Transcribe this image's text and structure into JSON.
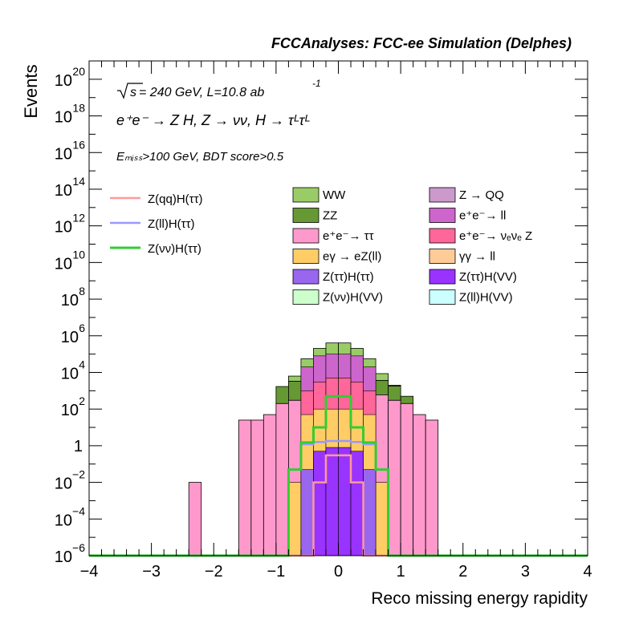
{
  "chart_data": {
    "type": "bar",
    "title": "FCCAnalyses: FCC-ee Simulation (Delphes)",
    "xlabel": "Reco missing energy rapidity",
    "ylabel": "Events",
    "y_log": true,
    "xlim": [
      -4,
      4
    ],
    "ylim": [
      1e-06,
      1e+21
    ],
    "x_ticks": [
      "−4",
      "−3",
      "−2",
      "−1",
      "0",
      "1",
      "2",
      "3",
      "4"
    ],
    "y_ticks": [
      {
        "base": "10",
        "exp": "−6",
        "e": -6
      },
      {
        "base": "10",
        "exp": "−4",
        "e": -4
      },
      {
        "base": "10",
        "exp": "−2",
        "e": -2
      },
      {
        "base": "1",
        "exp": "",
        "e": 0
      },
      {
        "base": "10",
        "exp": "2",
        "e": 2
      },
      {
        "base": "10",
        "exp": "4",
        "e": 4
      },
      {
        "base": "10",
        "exp": "6",
        "e": 6
      },
      {
        "base": "10",
        "exp": "8",
        "e": 8
      },
      {
        "base": "10",
        "exp": "10",
        "e": 10
      },
      {
        "base": "10",
        "exp": "12",
        "e": 12
      },
      {
        "base": "10",
        "exp": "14",
        "e": 14
      },
      {
        "base": "10",
        "exp": "16",
        "e": 16
      },
      {
        "base": "10",
        "exp": "18",
        "e": 18
      },
      {
        "base": "10",
        "exp": "20",
        "e": 20
      }
    ],
    "annotations": {
      "energy_prefix": "s",
      "energy_rest": " = 240 GeV, L=10.8 ab",
      "lumi_exp": "-1",
      "process": "e⁺e⁻ → Z H, Z → νν, H → τᴸτᴸ",
      "cuts": "Eₘᵢₛₛ>100 GeV, BDT score>0.5"
    },
    "bin_edges": [
      -4.0,
      -3.8,
      -3.6,
      -3.4,
      -3.2,
      -3.0,
      -2.8,
      -2.6,
      -2.4,
      -2.2,
      -2.0,
      -1.8,
      -1.6,
      -1.4,
      -1.2,
      -1.0,
      -0.8,
      -0.6,
      -0.4,
      -0.2,
      0.0,
      0.2,
      0.4,
      0.6,
      0.8,
      1.0,
      1.2,
      1.4,
      1.6,
      1.8,
      2.0,
      2.2,
      2.4,
      2.6,
      2.8,
      3.0,
      3.2,
      3.4,
      3.6,
      3.8,
      4.0
    ],
    "stack": [
      {
        "name": "e⁺e⁻→ ττ",
        "color": "#ff99cc",
        "values": [
          0,
          0,
          0,
          0,
          0,
          0,
          0,
          0,
          0.01,
          0,
          0,
          0,
          25,
          25,
          50,
          200,
          300,
          600,
          600,
          600,
          600,
          600,
          600,
          600,
          300,
          200,
          50,
          25,
          0,
          0,
          0,
          0,
          0,
          0,
          0,
          0,
          0,
          0,
          0,
          0
        ]
      },
      {
        "name": "ZZ",
        "color": "#669933",
        "values": [
          0,
          0,
          0,
          0,
          0,
          0,
          0,
          0,
          0,
          0,
          0,
          0,
          0,
          0,
          0,
          1500,
          3000,
          5000,
          5000,
          6000,
          6000,
          5000,
          5000,
          3000,
          1500,
          300,
          0,
          0,
          0,
          0,
          0,
          0,
          0,
          0,
          0,
          0,
          0,
          0,
          0,
          0
        ]
      },
      {
        "name": "WW",
        "color": "#99cc66",
        "values": [
          0,
          0,
          0,
          0,
          0,
          0,
          0,
          0,
          0,
          0,
          0,
          0,
          0,
          0,
          0,
          0,
          3000.0,
          50000.0,
          200000.0,
          400000.0,
          400000.0,
          200000.0,
          50000.0,
          5000.0,
          200,
          0,
          0,
          0,
          0,
          0,
          0,
          0,
          0,
          0,
          0,
          0,
          0,
          0,
          0,
          0
        ]
      }
    ],
    "overlay_filled": [
      {
        "name": "Z → QQ",
        "color": "#cc99cc",
        "values": [
          0,
          0,
          0,
          0,
          0,
          0,
          0,
          0,
          0,
          0,
          0,
          0,
          0,
          0,
          0,
          0,
          0,
          0,
          0,
          0,
          0,
          0,
          0,
          0,
          0,
          0,
          0,
          0,
          0,
          0,
          0,
          0,
          0,
          0,
          0,
          0,
          0,
          0,
          0,
          0
        ]
      },
      {
        "name": "e⁺e⁻→ ll",
        "color": "#cc66cc",
        "values": [
          0,
          0,
          0,
          0,
          0,
          0,
          0,
          0,
          0,
          0,
          0,
          0,
          0,
          0,
          0,
          0,
          0,
          20000.0,
          80000.0,
          100000.0,
          100000.0,
          80000.0,
          20000.0,
          0,
          0,
          0,
          0,
          0,
          0,
          0,
          0,
          0,
          0,
          0,
          0,
          0,
          0,
          0,
          0,
          0
        ]
      },
      {
        "name": "e⁺e⁻→ νₑνₑ Z",
        "color": "#ff6699",
        "values": [
          0,
          0,
          0,
          0,
          0,
          0,
          0,
          0,
          0,
          0,
          0,
          0,
          0,
          0,
          0,
          0,
          0,
          1000.0,
          3000.0,
          5000.0,
          5000.0,
          3000.0,
          1000.0,
          0,
          0,
          0,
          0,
          0,
          0,
          0,
          0,
          0,
          0,
          0,
          0,
          0,
          0,
          0,
          0,
          0
        ]
      },
      {
        "name": "eγ → eZ(ll)",
        "color": "#ffcc66",
        "values": [
          0,
          0,
          0,
          0,
          0,
          0,
          0,
          0,
          0,
          0,
          0,
          0,
          0,
          0,
          0,
          0,
          0.01,
          50,
          100,
          100,
          100,
          100,
          50,
          0.01,
          0,
          0,
          0,
          0,
          0,
          0,
          0,
          0,
          0,
          0,
          0,
          0,
          0,
          0,
          0,
          0
        ]
      },
      {
        "name": "γγ → ll",
        "color": "#ffcc99",
        "values": [
          0,
          0,
          0,
          0,
          0,
          0,
          0,
          0,
          0,
          0,
          0,
          0,
          0,
          0,
          0,
          0,
          0,
          0,
          0,
          0,
          0,
          0,
          0,
          0,
          0,
          0,
          0,
          0,
          0,
          0,
          0,
          0,
          0,
          0,
          0,
          0,
          0,
          0,
          0,
          0
        ]
      },
      {
        "name": "Z(ττ)H(ττ)",
        "color": "#9966ee",
        "values": [
          0,
          0,
          0,
          0,
          0,
          0,
          0,
          0,
          0,
          0,
          0,
          0,
          0,
          0,
          0,
          0,
          0,
          0.05,
          0.2,
          0.3,
          0.3,
          0.2,
          0.05,
          0,
          0,
          0,
          0,
          0,
          0,
          0,
          0,
          0,
          0,
          0,
          0,
          0,
          0,
          0,
          0,
          0
        ]
      },
      {
        "name": "Z(ττ)H(VV)",
        "color": "#9933ff",
        "values": [
          0,
          0,
          0,
          0,
          0,
          0,
          0,
          0,
          0,
          0,
          0,
          0,
          0,
          0,
          0,
          0,
          0,
          0,
          0.5,
          0.8,
          0.8,
          0.5,
          0,
          0,
          0,
          0,
          0,
          0,
          0,
          0,
          0,
          0,
          0,
          0,
          0,
          0,
          0,
          0,
          0,
          0
        ]
      },
      {
        "name": "Z(νν)H(VV)",
        "color": "#ccffcc",
        "values": [
          0,
          0,
          0,
          0,
          0,
          0,
          0,
          0,
          0,
          0,
          0,
          0,
          0,
          0,
          0,
          0,
          0,
          0,
          0,
          0,
          0,
          0,
          0,
          0,
          0,
          0,
          0,
          0,
          0,
          0,
          0,
          0,
          0,
          0,
          0,
          0,
          0,
          0,
          0,
          0
        ]
      },
      {
        "name": "Z(ll)H(VV)",
        "color": "#ccffff",
        "values": [
          0,
          0,
          0,
          0,
          0,
          0,
          0,
          0,
          0,
          0,
          0,
          0,
          0,
          0,
          0,
          0,
          0,
          0,
          0,
          0,
          0,
          0,
          0,
          0,
          0,
          0,
          0,
          0,
          0,
          0,
          0,
          0,
          0,
          0,
          0,
          0,
          0,
          0,
          0,
          0
        ]
      }
    ],
    "signals": [
      {
        "name": "Z(qq)H(ττ)",
        "color": "#ff9999",
        "values": [
          0,
          0,
          0,
          0,
          0,
          0,
          0,
          0,
          0,
          0,
          0,
          0,
          0,
          0,
          0,
          0,
          0,
          0,
          0.01,
          0.3,
          0.3,
          0.01,
          0,
          0,
          0,
          0,
          0,
          0,
          0,
          0,
          0,
          0,
          0,
          0,
          0,
          0,
          0,
          0,
          0,
          0
        ]
      },
      {
        "name": "Z(ll)H(ττ)",
        "color": "#9999ff",
        "values": [
          0,
          0,
          0,
          0,
          0,
          0,
          0,
          0,
          0,
          0,
          0,
          0,
          0,
          0,
          0,
          0,
          0.05,
          1.2,
          1.6,
          1.8,
          1.8,
          1.6,
          1.2,
          0.05,
          0,
          0,
          0,
          0,
          0,
          0,
          0,
          0,
          0,
          0,
          0,
          0,
          0,
          0,
          0,
          0
        ]
      },
      {
        "name": "Z(νν)H(ττ)",
        "color": "#33cc33",
        "values": [
          0,
          0,
          0,
          0,
          0,
          0,
          0,
          0,
          0,
          0,
          0,
          0,
          0,
          0,
          0,
          0,
          0.05,
          1.5,
          10,
          500,
          500,
          10,
          1.5,
          0.05,
          0,
          0,
          0,
          0,
          0,
          0,
          0,
          0,
          0,
          0,
          0,
          0,
          0,
          0,
          0,
          0
        ]
      }
    ],
    "legend_columns": [
      [
        "Z(qq)H(ττ)",
        "Z(ll)H(ττ)",
        "Z(νν)H(ττ)"
      ],
      [
        "WW",
        "ZZ",
        "e⁺e⁻→ ττ",
        "eγ → eZ(ll)",
        "Z(ττ)H(ττ)",
        "Z(νν)H(VV)"
      ],
      [
        "Z → QQ",
        "e⁺e⁻→ ll",
        "e⁺e⁻→ νₑνₑ Z",
        "γγ → ll",
        "Z(ττ)H(VV)",
        "Z(ll)H(VV)"
      ]
    ],
    "legend_placement": "top-center",
    "grid": false
  }
}
